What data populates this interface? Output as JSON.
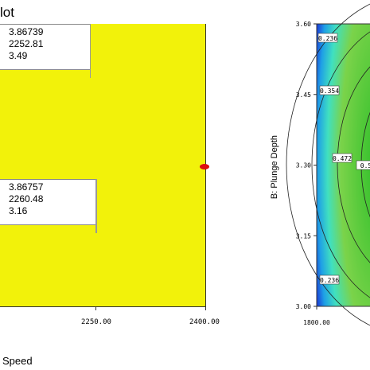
{
  "left_panel": {
    "title": "lot",
    "callout_top": [
      "3.86739",
      "2252.81",
      "3.49"
    ],
    "callout_bottom": [
      "3.86757",
      "2260.48",
      "3.16"
    ],
    "x_ticks": [
      "2250.00",
      "2400.00"
    ],
    "x_axis_label": "Speed",
    "fill_color": "#f2f20a",
    "marker_color": "#dd1010"
  },
  "chart_data": [
    {
      "type": "heatmap",
      "title": "",
      "xlabel": "",
      "ylabel": "B: Plunge Depth",
      "x_ticks": [
        "1800.00"
      ],
      "y_ticks": [
        "3.00",
        "3.15",
        "3.30",
        "3.45",
        "3.60"
      ],
      "ylim": [
        3.0,
        3.6
      ],
      "contour_labels": [
        "0.236",
        "0.354",
        "0.472",
        "0.5",
        "0.236"
      ],
      "colors": {
        "low": "#1a3fd8",
        "mid": "#40e0c0",
        "high": "#2fbf2a"
      }
    }
  ]
}
